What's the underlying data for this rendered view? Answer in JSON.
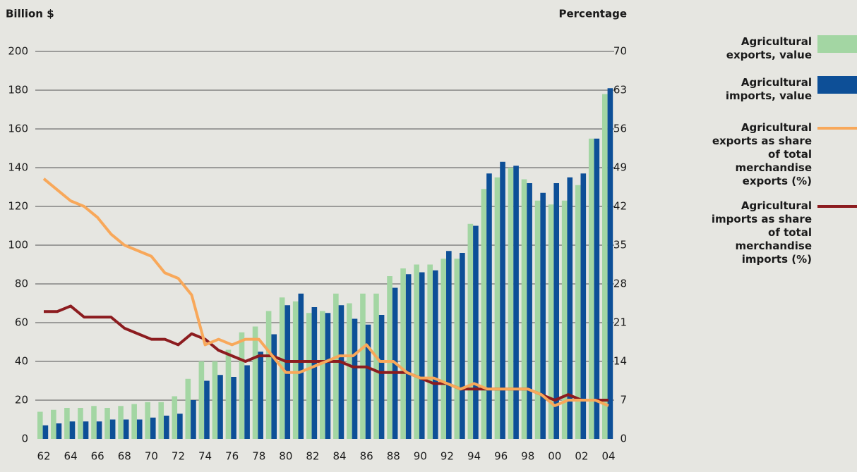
{
  "chart_data": {
    "type": "bar",
    "ylabel": "Billion $",
    "y2label": "Percentage",
    "categories": [
      "62",
      null,
      "64",
      null,
      "66",
      null,
      "68",
      null,
      "70",
      null,
      "72",
      null,
      "74",
      null,
      "76",
      null,
      "78",
      null,
      "80",
      null,
      "82",
      null,
      "84",
      null,
      "86",
      null,
      "88",
      null,
      "90",
      null,
      "92",
      null,
      "94",
      null,
      "96",
      null,
      "98",
      null,
      "00",
      null,
      "02",
      null,
      "04"
    ],
    "ylim": [
      0,
      200
    ],
    "yticks": [
      0,
      20,
      40,
      60,
      80,
      100,
      120,
      140,
      160,
      180,
      200
    ],
    "y2lim": [
      0,
      70
    ],
    "y2ticks": [
      0,
      7,
      14,
      21,
      28,
      35,
      42,
      49,
      56,
      63,
      70
    ],
    "grid": true,
    "series": [
      {
        "name": "Agricultural exports, value",
        "type": "bar",
        "color": "#a3d6a3",
        "values": [
          14,
          15,
          16,
          16,
          17,
          16,
          17,
          18,
          19,
          19,
          22,
          31,
          40,
          40,
          46,
          55,
          58,
          66,
          73,
          71,
          65,
          66,
          75,
          70,
          75,
          75,
          84,
          88,
          90,
          90,
          93,
          93,
          111,
          129,
          135,
          140,
          134,
          123,
          121,
          123,
          131,
          155,
          178
        ]
      },
      {
        "name": "Agricultural imports, value",
        "type": "bar",
        "color": "#0d4f97",
        "values": [
          7,
          8,
          9,
          9,
          9,
          10,
          10,
          10,
          11,
          12,
          13,
          20,
          30,
          33,
          32,
          38,
          45,
          54,
          69,
          75,
          68,
          65,
          69,
          62,
          59,
          64,
          78,
          85,
          86,
          87,
          97,
          96,
          110,
          137,
          143,
          141,
          132,
          127,
          132,
          135,
          137,
          155,
          181
        ]
      },
      {
        "name": "Agricultural exports as share of total merchandise exports (%)",
        "type": "line",
        "axis": "y2",
        "color": "#f8a85a",
        "values": [
          47,
          45,
          43,
          42,
          40,
          37,
          35,
          34,
          33,
          30,
          29,
          26,
          17,
          18,
          17,
          18,
          18,
          15,
          12,
          12,
          13,
          14,
          15,
          15,
          17,
          14,
          14,
          12,
          11,
          11,
          10,
          9,
          10,
          9,
          9,
          9,
          9,
          8,
          6,
          7,
          7,
          7,
          6
        ]
      },
      {
        "name": "Agricultural imports as share of total merchandise imports (%)",
        "type": "line",
        "axis": "y2",
        "color": "#8c1c1f",
        "values": [
          23,
          23,
          24,
          22,
          22,
          22,
          20,
          19,
          18,
          18,
          17,
          19,
          18,
          16,
          15,
          14,
          15,
          15,
          14,
          14,
          14,
          14,
          14,
          13,
          13,
          12,
          12,
          12,
          11,
          10,
          10,
          9,
          9,
          9,
          9,
          9,
          9,
          8,
          7,
          8,
          7,
          7,
          7
        ]
      }
    ]
  }
}
